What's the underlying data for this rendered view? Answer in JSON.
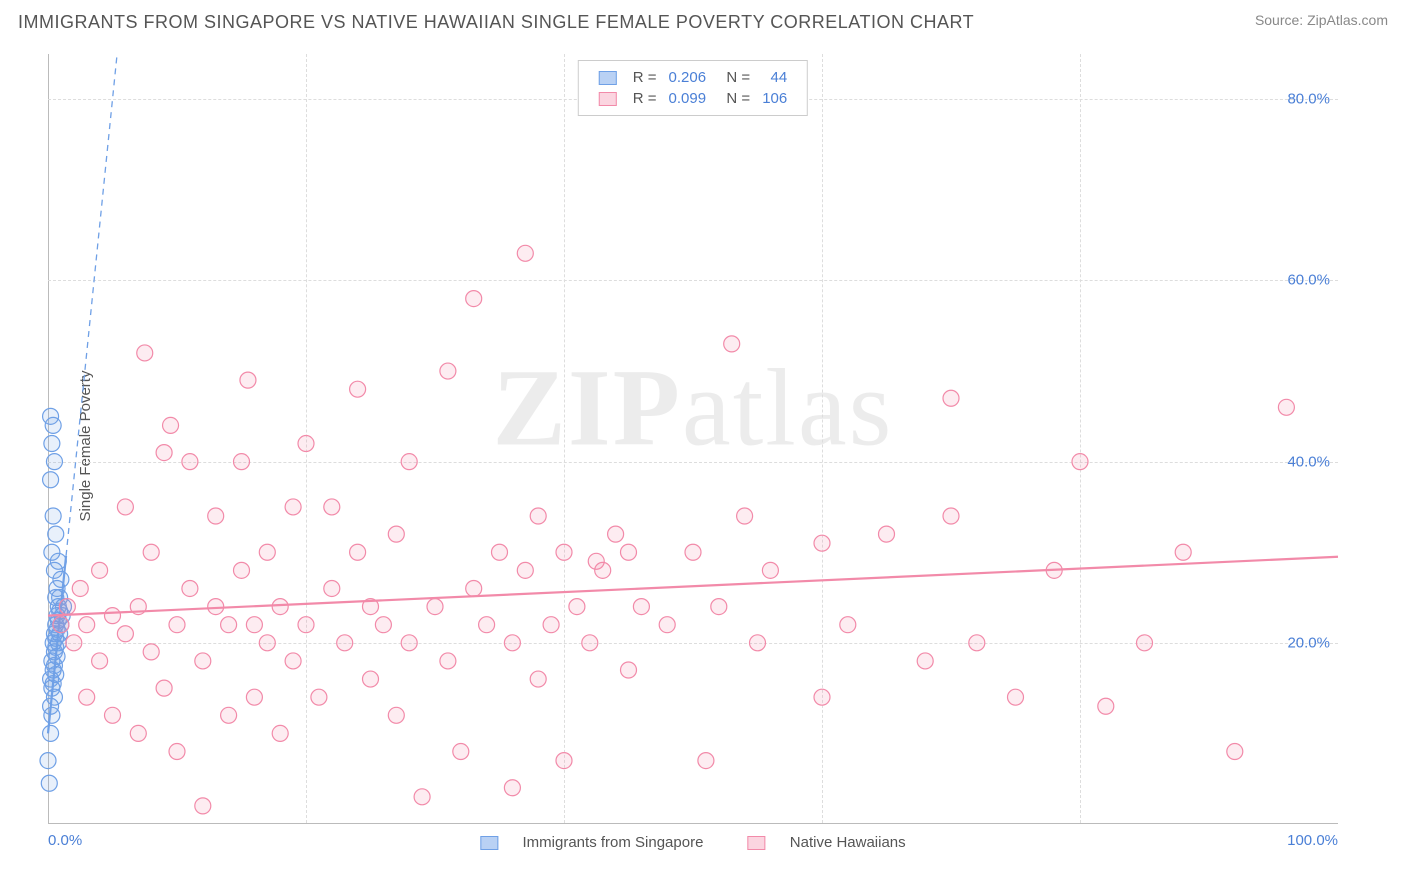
{
  "header": {
    "title": "IMMIGRANTS FROM SINGAPORE VS NATIVE HAWAIIAN SINGLE FEMALE POVERTY CORRELATION CHART",
    "source": "Source: ZipAtlas.com"
  },
  "axes": {
    "ylabel": "Single Female Poverty",
    "xlim": [
      0,
      100
    ],
    "ylim": [
      0,
      85
    ],
    "yticks": [
      {
        "v": 20,
        "label": "20.0%"
      },
      {
        "v": 40,
        "label": "40.0%"
      },
      {
        "v": 60,
        "label": "60.0%"
      },
      {
        "v": 80,
        "label": "80.0%"
      }
    ],
    "xticks_minor": [
      20,
      40,
      60,
      80
    ],
    "xticks": [
      {
        "v": 0,
        "label": "0.0%",
        "align": "left"
      },
      {
        "v": 100,
        "label": "100.0%",
        "align": "right"
      }
    ]
  },
  "watermark": {
    "bold": "ZIP",
    "rest": "atlas"
  },
  "style": {
    "background": "#ffffff",
    "grid_color": "#dddddd",
    "axis_color": "#bbbbbb",
    "tick_text_color": "#4a7fd6",
    "label_text_color": "#555555",
    "marker_radius": 8,
    "marker_stroke_width": 1.2,
    "marker_fill_opacity": 0.16,
    "trend_solid_width": 2.2,
    "trend_dash_width": 1.3,
    "trend_dash_pattern": "6 5"
  },
  "series": [
    {
      "id": "singapore",
      "label": "Immigrants from Singapore",
      "color": "#6fa0e6",
      "fill": "#b9d1f4",
      "r_value": "0.206",
      "n_value": "44",
      "trend": {
        "slope": 14.0,
        "intercept": 10.0,
        "x_solid_max": 1.4
      },
      "points": [
        [
          0.1,
          4.5
        ],
        [
          0.0,
          7
        ],
        [
          0.2,
          10
        ],
        [
          0.3,
          12
        ],
        [
          0.2,
          13
        ],
        [
          0.5,
          14
        ],
        [
          0.3,
          15
        ],
        [
          0.4,
          15.5
        ],
        [
          0.2,
          16
        ],
        [
          0.6,
          16.5
        ],
        [
          0.4,
          17
        ],
        [
          0.5,
          17.5
        ],
        [
          0.3,
          18
        ],
        [
          0.7,
          18.5
        ],
        [
          0.5,
          19
        ],
        [
          0.6,
          19.5
        ],
        [
          0.4,
          20
        ],
        [
          0.8,
          20
        ],
        [
          0.6,
          20.5
        ],
        [
          0.5,
          21
        ],
        [
          0.9,
          21
        ],
        [
          0.7,
          21.5
        ],
        [
          0.6,
          22
        ],
        [
          1.0,
          22
        ],
        [
          0.8,
          22.5
        ],
        [
          0.7,
          23
        ],
        [
          1.1,
          23
        ],
        [
          0.9,
          23.5
        ],
        [
          0.8,
          24
        ],
        [
          1.2,
          24
        ],
        [
          0.6,
          25
        ],
        [
          0.9,
          25
        ],
        [
          0.7,
          26
        ],
        [
          1.0,
          27
        ],
        [
          0.5,
          28
        ],
        [
          0.8,
          29
        ],
        [
          0.3,
          30
        ],
        [
          0.6,
          32
        ],
        [
          0.4,
          34
        ],
        [
          0.2,
          38
        ],
        [
          0.5,
          40
        ],
        [
          0.3,
          42
        ],
        [
          0.4,
          44
        ],
        [
          0.2,
          45
        ]
      ]
    },
    {
      "id": "hawaiian",
      "label": "Native Hawaiians",
      "color": "#f28aa9",
      "fill": "#fbd5e0",
      "r_value": "0.099",
      "n_value": "106",
      "trend": {
        "slope": 0.065,
        "intercept": 23.0,
        "x_solid_max": 100
      },
      "points": [
        [
          1,
          22
        ],
        [
          1.5,
          24
        ],
        [
          2,
          20
        ],
        [
          2.5,
          26
        ],
        [
          3,
          14
        ],
        [
          3,
          22
        ],
        [
          4,
          18
        ],
        [
          4,
          28
        ],
        [
          5,
          12
        ],
        [
          5,
          23
        ],
        [
          6,
          21
        ],
        [
          6,
          35
        ],
        [
          7,
          10
        ],
        [
          7,
          24
        ],
        [
          7.5,
          52
        ],
        [
          8,
          19
        ],
        [
          8,
          30
        ],
        [
          9,
          15
        ],
        [
          9,
          41
        ],
        [
          9.5,
          44
        ],
        [
          10,
          22
        ],
        [
          10,
          8
        ],
        [
          11,
          26
        ],
        [
          11,
          40
        ],
        [
          12,
          2
        ],
        [
          12,
          18
        ],
        [
          13,
          24
        ],
        [
          13,
          34
        ],
        [
          14,
          12
        ],
        [
          14,
          22
        ],
        [
          15,
          28
        ],
        [
          15,
          40
        ],
        [
          15.5,
          49
        ],
        [
          16,
          14
        ],
        [
          16,
          22
        ],
        [
          17,
          20
        ],
        [
          17,
          30
        ],
        [
          18,
          10
        ],
        [
          18,
          24
        ],
        [
          19,
          18
        ],
        [
          19,
          35
        ],
        [
          20,
          22
        ],
        [
          20,
          42
        ],
        [
          21,
          14
        ],
        [
          22,
          26
        ],
        [
          22,
          35
        ],
        [
          23,
          20
        ],
        [
          24,
          30
        ],
        [
          24,
          48
        ],
        [
          25,
          16
        ],
        [
          25,
          24
        ],
        [
          26,
          22
        ],
        [
          27,
          12
        ],
        [
          27,
          32
        ],
        [
          28,
          20
        ],
        [
          28,
          40
        ],
        [
          29,
          3
        ],
        [
          30,
          24
        ],
        [
          31,
          18
        ],
        [
          31,
          50
        ],
        [
          32,
          8
        ],
        [
          33,
          26
        ],
        [
          33,
          58
        ],
        [
          34,
          22
        ],
        [
          35,
          30
        ],
        [
          36,
          4
        ],
        [
          36,
          20
        ],
        [
          37,
          28
        ],
        [
          37,
          63
        ],
        [
          38,
          16
        ],
        [
          38,
          34
        ],
        [
          39,
          22
        ],
        [
          40,
          30
        ],
        [
          40,
          7
        ],
        [
          41,
          24
        ],
        [
          42,
          20
        ],
        [
          42.5,
          29
        ],
        [
          43,
          28
        ],
        [
          44,
          32
        ],
        [
          45,
          30
        ],
        [
          45,
          17
        ],
        [
          46,
          24
        ],
        [
          48,
          22
        ],
        [
          50,
          30
        ],
        [
          51,
          7
        ],
        [
          52,
          24
        ],
        [
          53,
          53
        ],
        [
          54,
          34
        ],
        [
          55,
          20
        ],
        [
          56,
          28
        ],
        [
          60,
          14
        ],
        [
          60,
          31
        ],
        [
          62,
          22
        ],
        [
          65,
          32
        ],
        [
          68,
          18
        ],
        [
          70,
          47
        ],
        [
          70,
          34
        ],
        [
          72,
          20
        ],
        [
          75,
          14
        ],
        [
          78,
          28
        ],
        [
          80,
          40
        ],
        [
          82,
          13
        ],
        [
          85,
          20
        ],
        [
          88,
          30
        ],
        [
          92,
          8
        ],
        [
          96,
          46
        ]
      ]
    }
  ]
}
